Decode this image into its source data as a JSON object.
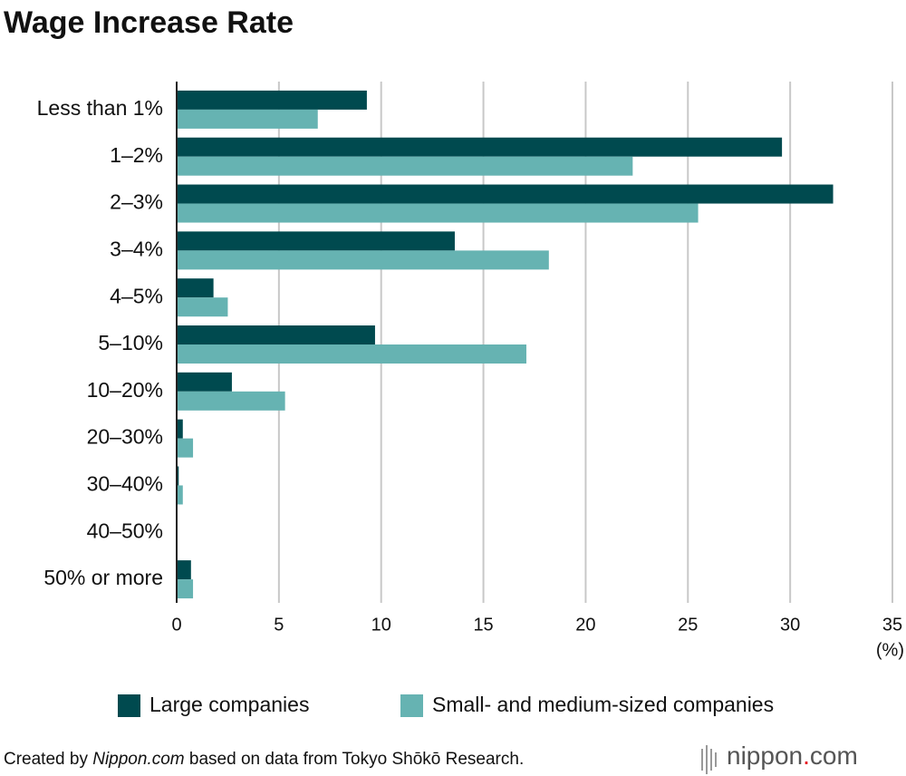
{
  "chart_data": {
    "type": "hbar",
    "title": "Wage Increase Rate",
    "categories": [
      "Less than 1%",
      "1–2%",
      "2–3%",
      "3–4%",
      "4–5%",
      "5–10%",
      "10–20%",
      "20–30%",
      "30–40%",
      "40–50%",
      "50% or more"
    ],
    "series": [
      {
        "name": "Large companies",
        "color": "#004a4f",
        "values": [
          9.3,
          29.6,
          32.1,
          13.6,
          1.8,
          9.7,
          2.7,
          0.3,
          0.1,
          0,
          0.7
        ]
      },
      {
        "name": "Small- and medium-sized companies",
        "color": "#66b3b2",
        "values": [
          6.9,
          22.3,
          25.5,
          18.2,
          2.5,
          17.1,
          5.3,
          0.8,
          0.3,
          0,
          0.8
        ]
      }
    ],
    "xlim": [
      0,
      35
    ],
    "xticks": [
      0,
      5,
      10,
      15,
      20,
      25,
      30,
      35
    ],
    "x_unit": "(%)",
    "grid": true,
    "source": {
      "prefix": "Created by",
      "italic": "Nippon.com",
      "suffix": "based on data from Tokyo Shōkō Research."
    },
    "logo": [
      "nippon",
      ".",
      "com"
    ]
  }
}
